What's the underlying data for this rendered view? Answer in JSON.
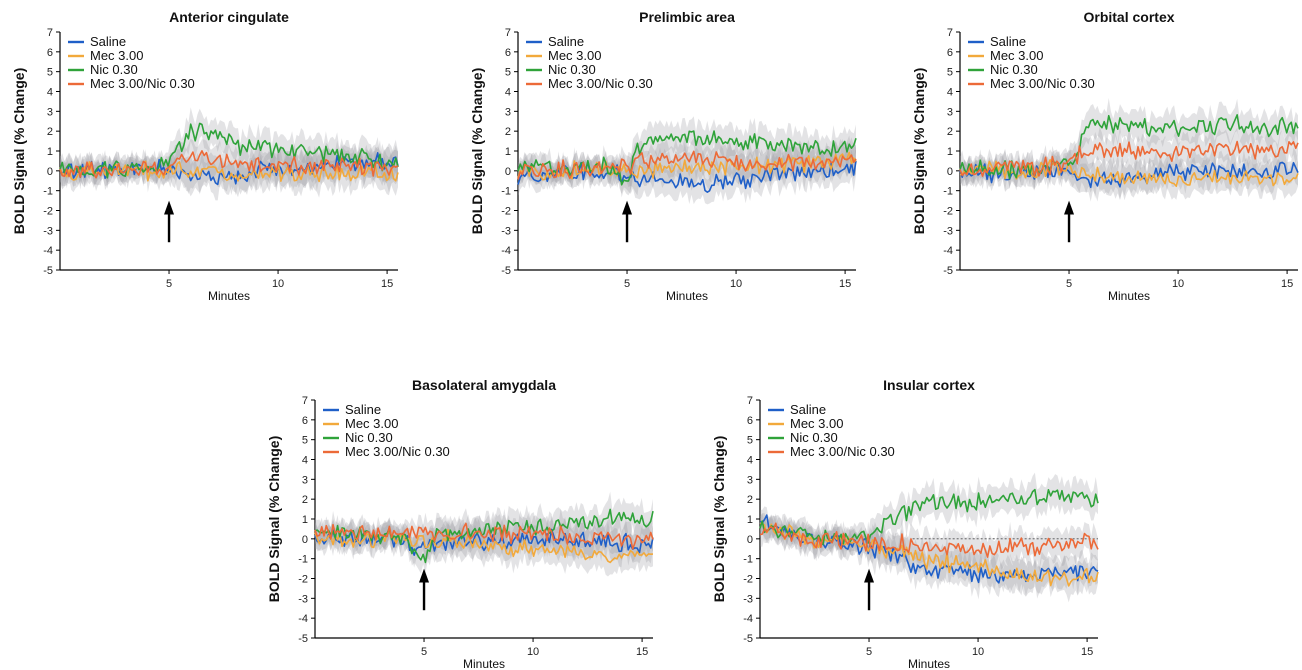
{
  "chart_data": [
    {
      "type": "line",
      "title": "Anterior cingulate",
      "xlabel": "Minutes",
      "ylabel": "BOLD Signal (% Change)",
      "xlim": [
        0,
        15.5
      ],
      "ylim": [
        -5,
        7
      ],
      "xticks": [
        5,
        10,
        15
      ],
      "yticks": [
        7,
        6,
        5,
        4,
        3,
        2,
        1,
        0,
        -1,
        -2,
        -3,
        -4,
        -5
      ],
      "annotation": {
        "type": "arrow",
        "x": 5
      },
      "legend": {
        "position": "top-left"
      },
      "shaded_error": true,
      "series": [
        {
          "name": "Saline",
          "color": "#1f5fc8",
          "points": [
            [
              0,
              0.1
            ],
            [
              2,
              0.0
            ],
            [
              4,
              0.1
            ],
            [
              5,
              0.2
            ],
            [
              6,
              -0.3
            ],
            [
              8,
              -0.2
            ],
            [
              10,
              0.1
            ],
            [
              12,
              0.3
            ],
            [
              14,
              0.4
            ],
            [
              15.5,
              0.5
            ]
          ]
        },
        {
          "name": "Mec 3.00",
          "color": "#f2a93b",
          "points": [
            [
              0,
              0.0
            ],
            [
              2,
              0.0
            ],
            [
              4,
              0.0
            ],
            [
              5,
              0.0
            ],
            [
              6,
              -0.1
            ],
            [
              8,
              -0.2
            ],
            [
              10,
              -0.1
            ],
            [
              12,
              -0.1
            ],
            [
              14,
              -0.1
            ],
            [
              15.5,
              -0.2
            ]
          ]
        },
        {
          "name": "Nic 0.30",
          "color": "#2fa33a",
          "points": [
            [
              0,
              0.1
            ],
            [
              2,
              0.1
            ],
            [
              4,
              0.2
            ],
            [
              5,
              0.3
            ],
            [
              5.5,
              1.2
            ],
            [
              6,
              2.0
            ],
            [
              7,
              1.8
            ],
            [
              8,
              1.3
            ],
            [
              10,
              1.0
            ],
            [
              12,
              0.9
            ],
            [
              14,
              0.6
            ],
            [
              15.5,
              0.4
            ]
          ]
        },
        {
          "name": "Mec 3.00/Nic 0.30",
          "color": "#ec6a38",
          "points": [
            [
              0,
              0.0
            ],
            [
              2,
              0.0
            ],
            [
              4,
              0.1
            ],
            [
              5,
              0.2
            ],
            [
              6,
              0.8
            ],
            [
              7,
              0.6
            ],
            [
              8,
              0.4
            ],
            [
              10,
              0.3
            ],
            [
              12,
              0.2
            ],
            [
              14,
              0.2
            ],
            [
              15.5,
              0.1
            ]
          ]
        }
      ]
    },
    {
      "type": "line",
      "title": "Prelimbic area",
      "xlabel": "Minutes",
      "ylabel": "BOLD Signal (% Change)",
      "xlim": [
        0,
        15.5
      ],
      "ylim": [
        -5,
        7
      ],
      "xticks": [
        5,
        10,
        15
      ],
      "yticks": [
        7,
        6,
        5,
        4,
        3,
        2,
        1,
        0,
        -1,
        -2,
        -3,
        -4,
        -5
      ],
      "annotation": {
        "type": "arrow",
        "x": 5
      },
      "legend": {
        "position": "top-left"
      },
      "shaded_error": true,
      "series": [
        {
          "name": "Saline",
          "color": "#1f5fc8",
          "points": [
            [
              0,
              -0.2
            ],
            [
              2,
              -0.1
            ],
            [
              4,
              0.0
            ],
            [
              5,
              -0.3
            ],
            [
              6,
              -0.4
            ],
            [
              8,
              -0.6
            ],
            [
              10,
              -0.5
            ],
            [
              12,
              -0.2
            ],
            [
              14,
              -0.1
            ],
            [
              15.5,
              0.2
            ]
          ]
        },
        {
          "name": "Mec 3.00",
          "color": "#f2a93b",
          "points": [
            [
              0,
              0.0
            ],
            [
              2,
              0.0
            ],
            [
              4,
              0.1
            ],
            [
              5,
              0.0
            ],
            [
              6,
              0.1
            ],
            [
              8,
              0.2
            ],
            [
              10,
              0.2
            ],
            [
              12,
              0.3
            ],
            [
              14,
              0.4
            ],
            [
              15.5,
              0.5
            ]
          ]
        },
        {
          "name": "Nic 0.30",
          "color": "#2fa33a",
          "points": [
            [
              0,
              0.2
            ],
            [
              2,
              0.1
            ],
            [
              4,
              0.2
            ],
            [
              5,
              -0.5
            ],
            [
              5.5,
              1.0
            ],
            [
              6,
              1.6
            ],
            [
              8,
              1.7
            ],
            [
              10,
              1.5
            ],
            [
              12,
              1.3
            ],
            [
              14,
              1.1
            ],
            [
              15.5,
              1.3
            ]
          ]
        },
        {
          "name": "Mec 3.00/Nic 0.30",
          "color": "#ec6a38",
          "points": [
            [
              0,
              0.0
            ],
            [
              2,
              0.1
            ],
            [
              4,
              0.2
            ],
            [
              5,
              0.3
            ],
            [
              6,
              0.5
            ],
            [
              8,
              0.6
            ],
            [
              10,
              0.4
            ],
            [
              12,
              0.4
            ],
            [
              14,
              0.5
            ],
            [
              15.5,
              0.6
            ]
          ]
        }
      ]
    },
    {
      "type": "line",
      "title": "Orbital cortex",
      "xlabel": "Minutes",
      "ylabel": "BOLD Signal (% Change)",
      "xlim": [
        0,
        15.5
      ],
      "ylim": [
        -5,
        7
      ],
      "xticks": [
        5,
        10,
        15
      ],
      "yticks": [
        7,
        6,
        5,
        4,
        3,
        2,
        1,
        0,
        -1,
        -2,
        -3,
        -4,
        -5
      ],
      "annotation": {
        "type": "arrow",
        "x": 5
      },
      "legend": {
        "position": "top-left"
      },
      "shaded_error": true,
      "series": [
        {
          "name": "Saline",
          "color": "#1f5fc8",
          "points": [
            [
              0,
              0.0
            ],
            [
              2,
              -0.2
            ],
            [
              4,
              0.0
            ],
            [
              5,
              -0.3
            ],
            [
              6,
              -0.4
            ],
            [
              8,
              -0.3
            ],
            [
              10,
              0.0
            ],
            [
              12,
              0.1
            ],
            [
              14,
              0.0
            ],
            [
              15.5,
              0.1
            ]
          ]
        },
        {
          "name": "Mec 3.00",
          "color": "#f2a93b",
          "points": [
            [
              0,
              0.0
            ],
            [
              2,
              0.0
            ],
            [
              4,
              0.1
            ],
            [
              5,
              0.0
            ],
            [
              6,
              -0.2
            ],
            [
              8,
              -0.5
            ],
            [
              10,
              -0.4
            ],
            [
              12,
              -0.3
            ],
            [
              14,
              -0.4
            ],
            [
              15.5,
              -0.3
            ]
          ]
        },
        {
          "name": "Nic 0.30",
          "color": "#2fa33a",
          "points": [
            [
              0,
              0.1
            ],
            [
              2,
              0.0
            ],
            [
              4,
              0.2
            ],
            [
              5,
              0.3
            ],
            [
              5.5,
              1.5
            ],
            [
              6,
              2.4
            ],
            [
              8,
              2.2
            ],
            [
              10,
              2.1
            ],
            [
              12,
              2.4
            ],
            [
              14,
              2.2
            ],
            [
              15.5,
              2.3
            ]
          ]
        },
        {
          "name": "Mec 3.00/Nic 0.30",
          "color": "#ec6a38",
          "points": [
            [
              0,
              0.0
            ],
            [
              2,
              0.1
            ],
            [
              4,
              0.2
            ],
            [
              5,
              0.5
            ],
            [
              6,
              1.2
            ],
            [
              8,
              1.0
            ],
            [
              10,
              0.9
            ],
            [
              12,
              1.1
            ],
            [
              14,
              1.0
            ],
            [
              15.5,
              1.2
            ]
          ]
        }
      ]
    },
    {
      "type": "line",
      "title": "Basolateral amygdala",
      "xlabel": "Minutes",
      "ylabel": "BOLD Signal (% Change)",
      "xlim": [
        0,
        15.5
      ],
      "ylim": [
        -5,
        7
      ],
      "xticks": [
        5,
        10,
        15
      ],
      "yticks": [
        7,
        6,
        5,
        4,
        3,
        2,
        1,
        0,
        -1,
        -2,
        -3,
        -4,
        -5
      ],
      "annotation": {
        "type": "arrow",
        "x": 5
      },
      "legend": {
        "position": "top-left"
      },
      "shaded_error": true,
      "series": [
        {
          "name": "Saline",
          "color": "#1f5fc8",
          "points": [
            [
              0,
              0.0
            ],
            [
              2,
              0.0
            ],
            [
              4,
              -0.1
            ],
            [
              5,
              -0.5
            ],
            [
              6,
              -0.2
            ],
            [
              8,
              -0.1
            ],
            [
              10,
              0.0
            ],
            [
              12,
              0.0
            ],
            [
              14,
              -0.2
            ],
            [
              15.5,
              -0.3
            ]
          ]
        },
        {
          "name": "Mec 3.00",
          "color": "#f2a93b",
          "points": [
            [
              0,
              0.0
            ],
            [
              2,
              -0.1
            ],
            [
              4,
              -0.1
            ],
            [
              5,
              -0.2
            ],
            [
              6,
              0.0
            ],
            [
              8,
              -0.3
            ],
            [
              10,
              -0.5
            ],
            [
              12,
              -0.7
            ],
            [
              14,
              -0.8
            ],
            [
              15.5,
              -0.8
            ]
          ]
        },
        {
          "name": "Nic 0.30",
          "color": "#2fa33a",
          "points": [
            [
              0,
              0.3
            ],
            [
              2,
              0.2
            ],
            [
              4,
              0.1
            ],
            [
              5,
              -1.2
            ],
            [
              5.5,
              0.2
            ],
            [
              6,
              0.3
            ],
            [
              8,
              0.5
            ],
            [
              10,
              0.6
            ],
            [
              12,
              0.8
            ],
            [
              14,
              1.2
            ],
            [
              15.5,
              1.0
            ]
          ]
        },
        {
          "name": "Mec 3.00/Nic 0.30",
          "color": "#ec6a38",
          "points": [
            [
              0,
              0.2
            ],
            [
              2,
              0.3
            ],
            [
              4,
              0.2
            ],
            [
              5,
              0.3
            ],
            [
              6,
              0.4
            ],
            [
              8,
              0.3
            ],
            [
              10,
              0.2
            ],
            [
              12,
              0.1
            ],
            [
              14,
              0.0
            ],
            [
              15.5,
              -0.1
            ]
          ]
        }
      ]
    },
    {
      "type": "line",
      "title": "Insular cortex",
      "xlabel": "Minutes",
      "ylabel": "BOLD Signal (% Change)",
      "xlim": [
        0,
        15.5
      ],
      "ylim": [
        -5,
        7
      ],
      "xticks": [
        5,
        10,
        15
      ],
      "yticks": [
        7,
        6,
        5,
        4,
        3,
        2,
        1,
        0,
        -1,
        -2,
        -3,
        -4,
        -5
      ],
      "annotation": {
        "type": "arrow",
        "x": 5
      },
      "legend": {
        "position": "top-left"
      },
      "shaded_error": true,
      "reference_line": 0,
      "series": [
        {
          "name": "Saline",
          "color": "#1f5fc8",
          "points": [
            [
              0,
              1.2
            ],
            [
              1,
              0.5
            ],
            [
              2,
              0.0
            ],
            [
              4,
              -0.2
            ],
            [
              5,
              -0.4
            ],
            [
              6,
              -0.8
            ],
            [
              7,
              -1.3
            ],
            [
              8,
              -1.6
            ],
            [
              10,
              -1.8
            ],
            [
              12,
              -1.9
            ],
            [
              14,
              -1.8
            ],
            [
              15.5,
              -1.5
            ]
          ]
        },
        {
          "name": "Mec 3.00",
          "color": "#f2a93b",
          "points": [
            [
              0,
              1.0
            ],
            [
              1,
              0.3
            ],
            [
              2,
              0.0
            ],
            [
              4,
              -0.1
            ],
            [
              5,
              -0.3
            ],
            [
              6,
              -0.6
            ],
            [
              8,
              -1.1
            ],
            [
              10,
              -1.5
            ],
            [
              12,
              -1.8
            ],
            [
              14,
              -2.0
            ],
            [
              15.5,
              -1.9
            ]
          ]
        },
        {
          "name": "Nic 0.30",
          "color": "#2fa33a",
          "points": [
            [
              0,
              0.6
            ],
            [
              1,
              0.4
            ],
            [
              2,
              0.2
            ],
            [
              4,
              0.0
            ],
            [
              5,
              0.1
            ],
            [
              6,
              1.0
            ],
            [
              7,
              1.6
            ],
            [
              8,
              1.8
            ],
            [
              10,
              1.9
            ],
            [
              12,
              2.0
            ],
            [
              14,
              2.2
            ],
            [
              15.5,
              1.9
            ]
          ]
        },
        {
          "name": "Mec 3.00/Nic 0.30",
          "color": "#ec6a38",
          "points": [
            [
              0,
              0.5
            ],
            [
              1,
              0.3
            ],
            [
              2,
              0.0
            ],
            [
              4,
              -0.1
            ],
            [
              5,
              -0.2
            ],
            [
              6,
              -0.3
            ],
            [
              7,
              -0.2
            ],
            [
              8,
              -0.4
            ],
            [
              10,
              -0.5
            ],
            [
              12,
              -0.4
            ],
            [
              14,
              -0.3
            ],
            [
              15.5,
              -0.1
            ]
          ]
        }
      ]
    }
  ]
}
